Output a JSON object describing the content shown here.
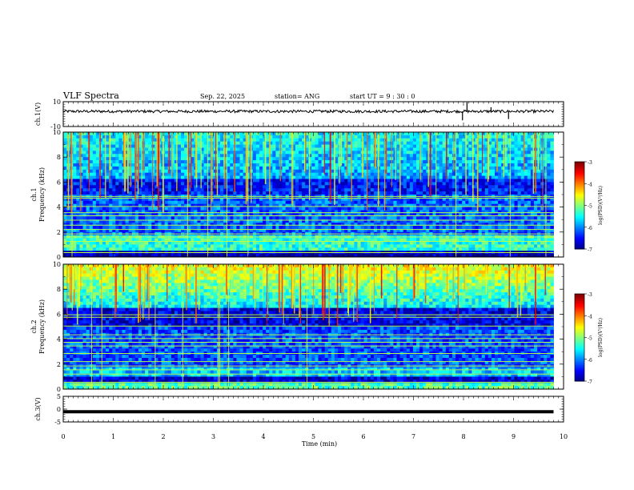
{
  "header": {
    "title": "VLF Spectra",
    "date": "Sep. 22, 2025",
    "station": "station= ANG",
    "start": "start  UT =   9  : 30 : 0"
  },
  "chart_data": [
    {
      "type": "line",
      "name": "ch1-waveform",
      "ylabel": "ch.1(V)",
      "ylim": [
        -10,
        10
      ],
      "ytick_labels": [
        "10",
        "-10"
      ],
      "xlim": [
        0,
        10
      ],
      "baseline": 2.2,
      "spikes": [
        {
          "t": 8.07,
          "v": 9.5
        },
        {
          "t": 7.98,
          "v": -5.0
        },
        {
          "t": 8.9,
          "v": -4.0
        },
        {
          "t": 8.55,
          "v": 5.5
        }
      ]
    },
    {
      "type": "heatmap",
      "name": "ch1-spectrogram",
      "ylabel": "ch.1\nFrequency (kHz)",
      "ylim": [
        0,
        10
      ],
      "ytick_labels": [
        "0",
        "2",
        "4",
        "6",
        "8",
        "10"
      ],
      "xlim": [
        0,
        10
      ],
      "tones_khz": [
        0.35,
        1.25,
        1.6,
        1.85,
        2.2,
        2.55,
        2.95,
        3.3,
        3.55,
        4.05,
        4.7,
        4.85
      ],
      "colorbar": {
        "label": "log(PSD)(V²/Hz)",
        "range": [
          -7,
          -3
        ],
        "tick_labels": [
          "-3",
          "-4",
          "-5",
          "-6",
          "-7"
        ]
      }
    },
    {
      "type": "heatmap",
      "name": "ch2-spectrogram",
      "ylabel": "ch.2\nFrequency (kHz)",
      "ylim": [
        0,
        10
      ],
      "ytick_labels": [
        "0",
        "2",
        "4",
        "6",
        "8",
        "10"
      ],
      "xlim": [
        0,
        10
      ],
      "tones_khz": [
        0.55,
        1.2,
        1.55,
        1.85,
        2.2,
        2.85,
        3.45,
        3.75,
        4.05,
        4.35,
        5.05,
        5.75,
        5.95
      ],
      "colorbar": {
        "label": "log(PSD)(V²/Hz)",
        "range": [
          -7,
          -3
        ],
        "tick_labels": [
          "-3",
          "-4",
          "-5",
          "-6",
          "-7"
        ]
      }
    },
    {
      "type": "line",
      "name": "ch3-waveform",
      "ylabel": "ch.3(V)",
      "ylim": [
        -5,
        5
      ],
      "ytick_labels": [
        "5",
        "0",
        "-5"
      ],
      "xlim": [
        0,
        10
      ],
      "baseline": -1.0
    }
  ],
  "x_axis": {
    "label": "Time (min)",
    "tick_labels": [
      "0",
      "1",
      "2",
      "3",
      "4",
      "5",
      "6",
      "7",
      "8",
      "9",
      "10"
    ]
  }
}
